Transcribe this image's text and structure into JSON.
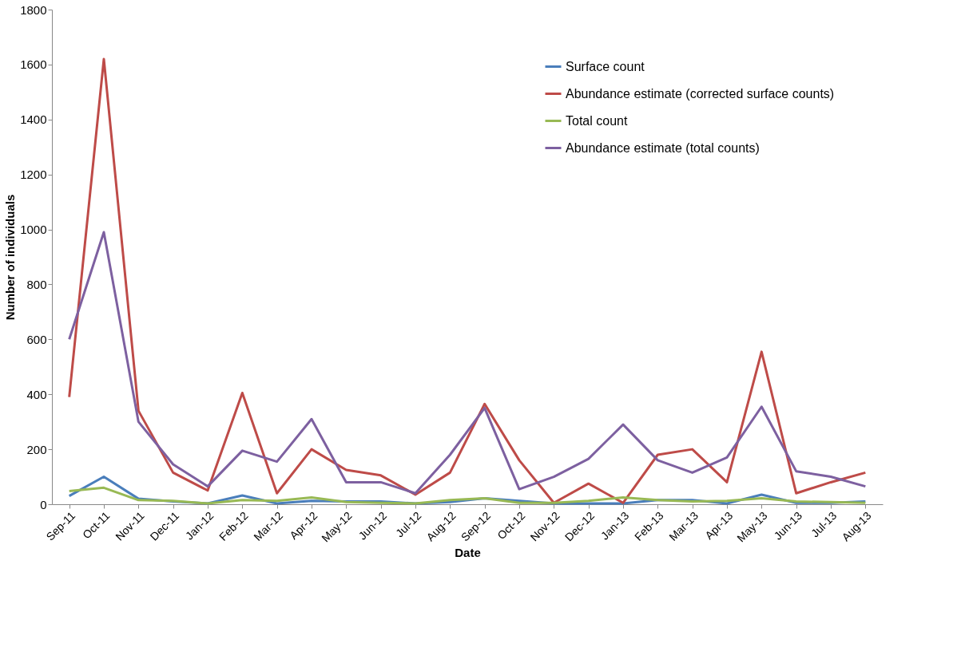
{
  "chart_data": {
    "type": "line",
    "xlabel": "Date",
    "ylabel": "Number of individuals",
    "categories": [
      "Sep-11",
      "Oct-11",
      "Nov-11",
      "Dec-11",
      "Jan-12",
      "Feb-12",
      "Mar-12",
      "Apr-12",
      "May-12",
      "Jun-12",
      "Jul-12",
      "Aug-12",
      "Sep-12",
      "Oct-12",
      "Nov-12",
      "Dec-12",
      "Jan-13",
      "Feb-13",
      "Mar-13",
      "Apr-13",
      "May-13",
      "Jun-13",
      "Jul-13",
      "Aug-13"
    ],
    "series": [
      {
        "name": "Surface count",
        "color": "#4a7ebb",
        "values": [
          30,
          100,
          20,
          10,
          3,
          32,
          3,
          12,
          10,
          10,
          3,
          8,
          22,
          12,
          3,
          3,
          3,
          15,
          15,
          3,
          35,
          5,
          5,
          10
        ]
      },
      {
        "name": "Abundance estimate (corrected surface counts)",
        "color": "#be4b48",
        "values": [
          390,
          1620,
          340,
          115,
          50,
          405,
          40,
          200,
          125,
          105,
          35,
          115,
          365,
          160,
          5,
          75,
          5,
          180,
          200,
          80,
          555,
          40,
          80,
          115
        ]
      },
      {
        "name": "Total count",
        "color": "#98b954",
        "values": [
          48,
          60,
          15,
          12,
          3,
          15,
          12,
          25,
          8,
          5,
          3,
          15,
          22,
          5,
          5,
          12,
          25,
          15,
          10,
          12,
          22,
          10,
          8,
          5
        ]
      },
      {
        "name": "Abundance estimate (total counts)",
        "color": "#7d60a0",
        "values": [
          600,
          990,
          300,
          145,
          65,
          195,
          155,
          310,
          80,
          80,
          40,
          180,
          350,
          55,
          100,
          165,
          290,
          160,
          115,
          170,
          355,
          120,
          100,
          65
        ]
      }
    ],
    "ylim": [
      0,
      1800
    ],
    "yticks": [
      0,
      200,
      400,
      600,
      800,
      1000,
      1200,
      1400,
      1600,
      1800
    ],
    "grid": false,
    "legend": "top right",
    "marker": "none",
    "line_style": "solid"
  }
}
